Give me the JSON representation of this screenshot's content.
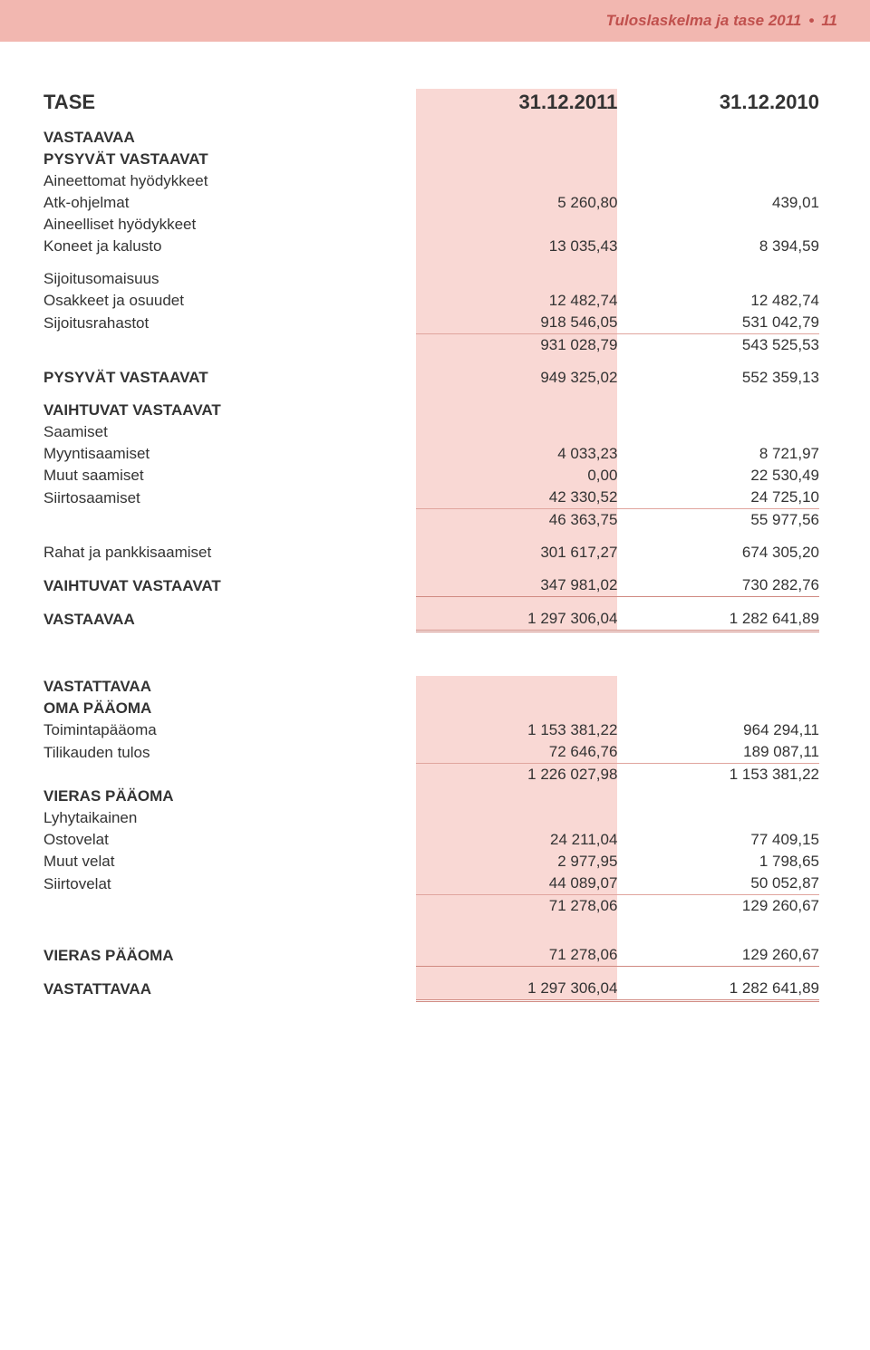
{
  "header": {
    "title_left": "Tuloslaskelma ja tase 2011",
    "bullet": "•",
    "page": "11"
  },
  "colors": {
    "header_bg": "#f2b7b0",
    "header_text": "#c0504d",
    "hl_bg": "#f9d8d4",
    "rule": "#d08a82",
    "rule_light": "#e0a59e",
    "text": "#333333"
  },
  "table": {
    "title": "TASE",
    "col1_header": "31.12.2011",
    "col2_header": "31.12.2010",
    "sections": {
      "vastaavaa": "VASTAAVAA",
      "pysyvat_vastaavat": "PYSYVÄT VASTAAVAT",
      "aineettomat": "Aineettomat hyödykkeet",
      "atk": {
        "label": "Atk-ohjelmat",
        "v1": "5 260,80",
        "v2": "439,01"
      },
      "aineelliset": "Aineelliset hyödykkeet",
      "koneet": {
        "label": "Koneet ja kalusto",
        "v1": "13 035,43",
        "v2": "8 394,59"
      },
      "sijoitusomaisuus": "Sijoitusomaisuus",
      "osakkeet": {
        "label": "Osakkeet ja osuudet",
        "v1": "12 482,74",
        "v2": "12 482,74"
      },
      "sijoitusrahastot": {
        "label": "Sijoitusrahastot",
        "v1": "918 546,05",
        "v2": "531 042,79"
      },
      "sij_sum": {
        "v1": "931 028,79",
        "v2": "543 525,53"
      },
      "pysyvat_sum": {
        "label": "PYSYVÄT VASTAAVAT",
        "v1": "949 325,02",
        "v2": "552 359,13"
      },
      "vaihtuvat": "VAIHTUVAT VASTAAVAT",
      "saamiset": "Saamiset",
      "myyntisaamiset": {
        "label": "Myyntisaamiset",
        "v1": "4 033,23",
        "v2": "8 721,97"
      },
      "muut_saamiset": {
        "label": "Muut saamiset",
        "v1": "0,00",
        "v2": "22 530,49"
      },
      "siirtosaamiset": {
        "label": "Siirtosaamiset",
        "v1": "42 330,52",
        "v2": "24 725,10"
      },
      "saam_sum": {
        "v1": "46 363,75",
        "v2": "55 977,56"
      },
      "rahat": {
        "label": "Rahat ja pankkisaamiset",
        "v1": "301 617,27",
        "v2": "674 305,20"
      },
      "vaihtuvat_sum": {
        "label": "VAIHTUVAT VASTAAVAT",
        "v1": "347 981,02",
        "v2": "730 282,76"
      },
      "vastaavaa_sum": {
        "label": "VASTAAVAA",
        "v1": "1 297 306,04",
        "v2": "1 282 641,89"
      },
      "vastattavaa": "VASTATTAVAA",
      "oma_paaoma": "OMA PÄÄOMA",
      "toimintapaaoma": {
        "label": "Toimintapääoma",
        "v1": "1 153 381,22",
        "v2": "964 294,11"
      },
      "tilikauden": {
        "label": "Tilikauden tulos",
        "v1": "72 646,76",
        "v2": "189 087,11"
      },
      "oma_sum": {
        "v1": "1 226 027,98",
        "v2": "1 153 381,22"
      },
      "vieras_paaoma": "VIERAS PÄÄOMA",
      "lyhytaikainen": "Lyhytaikainen",
      "ostovelat": {
        "label": "Ostovelat",
        "v1": "24 211,04",
        "v2": "77 409,15"
      },
      "muut_velat": {
        "label": "Muut velat",
        "v1": "2 977,95",
        "v2": "1 798,65"
      },
      "siirtovelat": {
        "label": "Siirtovelat",
        "v1": "44 089,07",
        "v2": "50 052,87"
      },
      "vieras_sub": {
        "v1": "71 278,06",
        "v2": "129 260,67"
      },
      "vieras_sum": {
        "label": "VIERAS PÄÄOMA",
        "v1": "71 278,06",
        "v2": "129 260,67"
      },
      "vastattavaa_sum": {
        "label": "VASTATTAVAA",
        "v1": "1 297 306,04",
        "v2": "1 282 641,89"
      }
    }
  }
}
